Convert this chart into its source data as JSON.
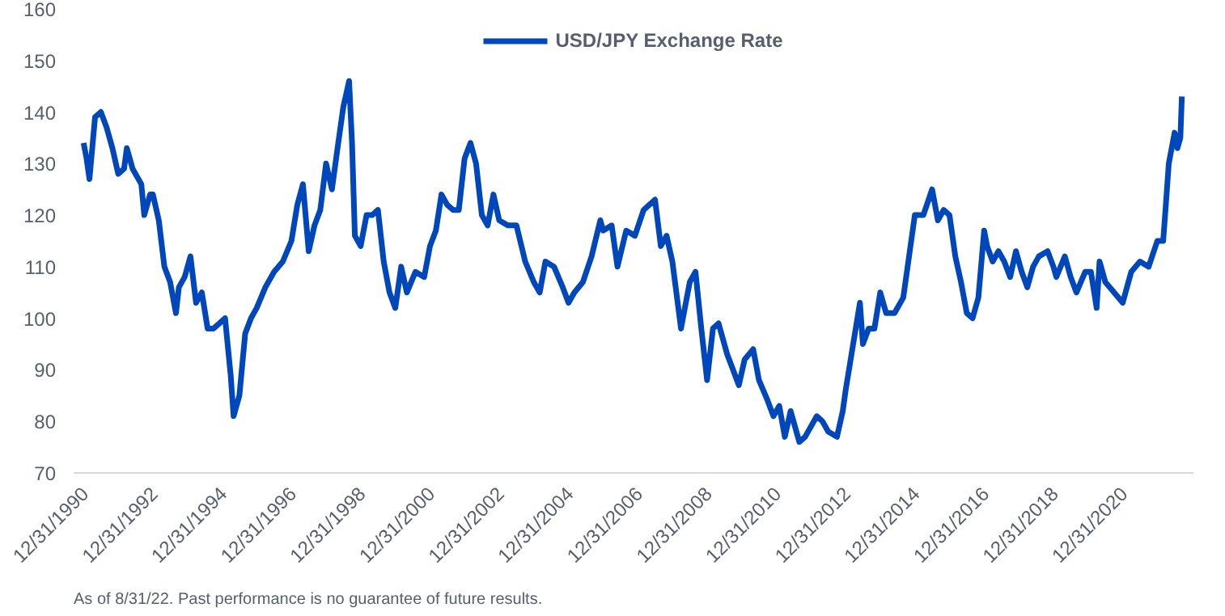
{
  "chart_data": {
    "type": "line",
    "annotations": [
      "As of 8/31/22. Past performance is no guarantee of future results."
    ],
    "xlim": [
      "1990-09-01",
      "2022-12-31"
    ],
    "xticks": [
      {
        "value": "1990-12-31",
        "label": "12/31/1990"
      },
      {
        "value": "1992-12-31",
        "label": "12/31/1992"
      },
      {
        "value": "1994-12-31",
        "label": "12/31/1994"
      },
      {
        "value": "1996-12-31",
        "label": "12/31/1996"
      },
      {
        "value": "1998-12-31",
        "label": "12/31/1998"
      },
      {
        "value": "2000-12-31",
        "label": "12/31/2000"
      },
      {
        "value": "2002-12-31",
        "label": "12/31/2002"
      },
      {
        "value": "2004-12-31",
        "label": "12/31/2004"
      },
      {
        "value": "2006-12-31",
        "label": "12/31/2006"
      },
      {
        "value": "2008-12-31",
        "label": "12/31/2008"
      },
      {
        "value": "2010-12-31",
        "label": "12/31/2010"
      },
      {
        "value": "2012-12-31",
        "label": "12/31/2012"
      },
      {
        "value": "2014-12-31",
        "label": "12/31/2014"
      },
      {
        "value": "2016-12-31",
        "label": "12/31/2016"
      },
      {
        "value": "2018-12-31",
        "label": "12/31/2018"
      },
      {
        "value": "2020-12-31",
        "label": "12/31/2020"
      }
    ],
    "ylim": [
      70,
      160
    ],
    "yticks": [
      70,
      80,
      90,
      100,
      110,
      120,
      130,
      140,
      150,
      160
    ],
    "grid": false,
    "legend": "top",
    "marker": "none",
    "line_style": "solid",
    "x": [
      "1990-12",
      "1991-01",
      "1991-02",
      "1991-04",
      "1991-06",
      "1991-08",
      "1991-10",
      "1991-12",
      "1992-02",
      "1992-03",
      "1992-05",
      "1992-08",
      "1992-09",
      "1992-11",
      "1992-12",
      "1993-02",
      "1993-04",
      "1993-06",
      "1993-08",
      "1993-09",
      "1993-11",
      "1994-01",
      "1994-03",
      "1994-05",
      "1994-07",
      "1994-09",
      "1994-11",
      "1995-01",
      "1995-03",
      "1995-04",
      "1995-06",
      "1995-08",
      "1995-10",
      "1995-12",
      "1996-03",
      "1996-06",
      "1996-09",
      "1996-12",
      "1997-02",
      "1997-04",
      "1997-06",
      "1997-08",
      "1997-10",
      "1997-12",
      "1998-02",
      "1998-04",
      "1998-06",
      "1998-08",
      "1998-09",
      "1998-10",
      "1998-12",
      "1999-02",
      "1999-04",
      "1999-06",
      "1999-08",
      "1999-10",
      "1999-12",
      "2000-02",
      "2000-04",
      "2000-07",
      "2000-10",
      "2000-12",
      "2001-02",
      "2001-04",
      "2001-06",
      "2001-08",
      "2001-10",
      "2001-12",
      "2002-02",
      "2002-04",
      "2002-06",
      "2002-08",
      "2002-10",
      "2002-12",
      "2003-03",
      "2003-06",
      "2003-09",
      "2003-12",
      "2004-02",
      "2004-04",
      "2004-07",
      "2004-10",
      "2004-12",
      "2005-02",
      "2005-05",
      "2005-08",
      "2005-11",
      "2005-12",
      "2006-03",
      "2006-05",
      "2006-08",
      "2006-11",
      "2007-02",
      "2007-06",
      "2007-08",
      "2007-10",
      "2007-12",
      "2008-03",
      "2008-06",
      "2008-08",
      "2008-10",
      "2008-12",
      "2009-02",
      "2009-04",
      "2009-07",
      "2009-11",
      "2010-01",
      "2010-04",
      "2010-06",
      "2010-09",
      "2010-11",
      "2011-01",
      "2011-03",
      "2011-05",
      "2011-08",
      "2011-10",
      "2012-02",
      "2012-04",
      "2012-06",
      "2012-09",
      "2012-11",
      "2012-12",
      "2013-02",
      "2013-05",
      "2013-06",
      "2013-08",
      "2013-10",
      "2013-12",
      "2014-02",
      "2014-05",
      "2014-08",
      "2014-10",
      "2014-12",
      "2015-03",
      "2015-06",
      "2015-08",
      "2015-10",
      "2015-12",
      "2016-02",
      "2016-04",
      "2016-06",
      "2016-08",
      "2016-10",
      "2016-12",
      "2017-01",
      "2017-03",
      "2017-05",
      "2017-07",
      "2017-09",
      "2017-11",
      "2018-01",
      "2018-03",
      "2018-05",
      "2018-07",
      "2018-10",
      "2018-12",
      "2019-01",
      "2019-04",
      "2019-06",
      "2019-08",
      "2019-11",
      "2020-01",
      "2020-03",
      "2020-04",
      "2020-06",
      "2020-09",
      "2020-12",
      "2021-03",
      "2021-06",
      "2021-09",
      "2021-12",
      "2022-02",
      "2022-03",
      "2022-04",
      "2022-06",
      "2022-07",
      "2022-08-15",
      "2022-08-31"
    ],
    "series": [
      {
        "name": "USD/JPY Exchange Rate",
        "color": "#0047bb",
        "values": [
          134,
          131,
          127,
          139,
          140,
          137,
          133,
          128,
          129,
          133,
          129,
          126,
          120,
          124,
          124,
          119,
          110,
          107,
          101,
          106,
          108,
          112,
          103,
          105,
          98,
          98,
          99,
          100,
          89,
          81,
          85,
          97,
          100,
          102,
          106,
          109,
          111,
          115,
          122,
          126,
          113,
          118,
          121,
          130,
          125,
          133,
          141,
          146,
          134,
          116,
          114,
          120,
          120,
          121,
          111,
          105,
          102,
          110,
          105,
          109,
          108,
          114,
          117,
          124,
          122,
          121,
          121,
          131,
          134,
          130,
          120,
          118,
          124,
          119,
          118,
          118,
          111,
          107,
          105,
          111,
          110,
          106,
          103,
          105,
          107,
          112,
          119,
          117,
          118,
          110,
          117,
          116,
          121,
          123,
          114,
          116,
          111,
          98,
          107,
          109,
          98,
          88,
          98,
          99,
          93,
          87,
          92,
          94,
          88,
          84,
          81,
          83,
          77,
          82,
          76,
          77,
          81,
          80,
          78,
          77,
          82,
          86,
          93,
          103,
          95,
          98,
          98,
          105,
          101,
          101,
          104,
          112,
          120,
          120,
          125,
          119,
          121,
          120,
          112,
          107,
          101,
          100,
          104,
          117,
          114,
          111,
          113,
          111,
          108,
          113,
          109,
          106,
          110,
          112,
          113,
          110,
          108,
          112,
          108,
          105,
          109,
          109,
          102,
          111,
          107,
          105,
          103,
          109,
          111,
          110,
          115,
          115,
          122,
          130,
          136,
          133,
          135,
          143
        ]
      }
    ]
  }
}
